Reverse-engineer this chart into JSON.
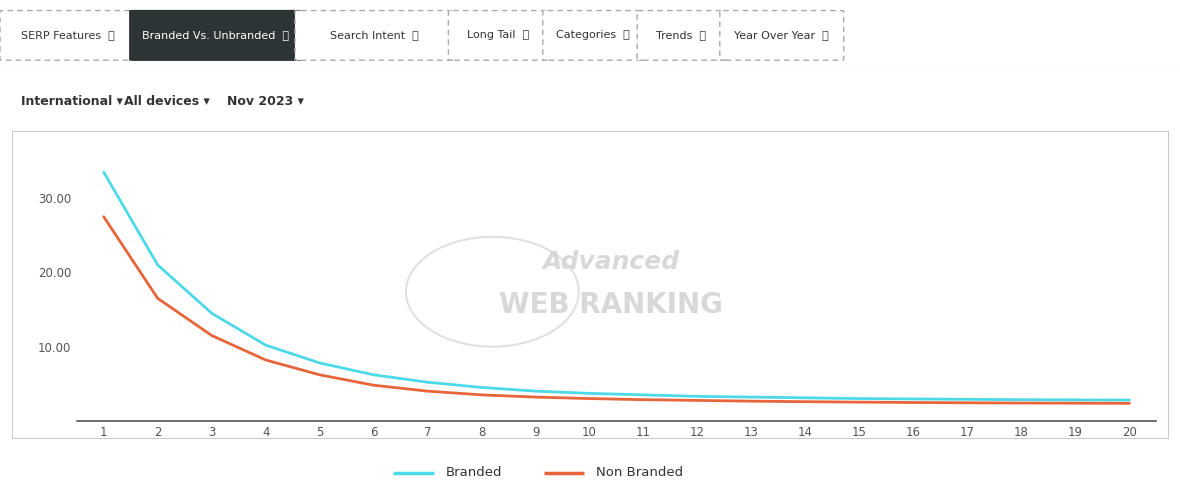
{
  "branded": [
    33.5,
    21.0,
    14.5,
    10.2,
    7.8,
    6.2,
    5.2,
    4.5,
    4.0,
    3.7,
    3.5,
    3.3,
    3.2,
    3.1,
    3.0,
    2.95,
    2.9,
    2.85,
    2.82,
    2.8
  ],
  "non_branded": [
    27.5,
    16.5,
    11.5,
    8.2,
    6.2,
    4.8,
    4.0,
    3.5,
    3.2,
    3.0,
    2.85,
    2.75,
    2.65,
    2.58,
    2.52,
    2.47,
    2.43,
    2.4,
    2.38,
    2.36
  ],
  "x": [
    1,
    2,
    3,
    4,
    5,
    6,
    7,
    8,
    9,
    10,
    11,
    12,
    13,
    14,
    15,
    16,
    17,
    18,
    19,
    20
  ],
  "branded_color": "#4dd9e8",
  "non_branded_color": "#e8643a",
  "yticks": [
    10.0,
    20.0,
    30.0
  ],
  "xticks": [
    1,
    2,
    3,
    4,
    5,
    6,
    7,
    8,
    9,
    10,
    11,
    12,
    13,
    14,
    15,
    16,
    17,
    18,
    19,
    20
  ],
  "ylim": [
    0,
    37
  ],
  "xlim": [
    0.5,
    20.5
  ],
  "chart_bg": "#ffffff",
  "legend_bg": "#e8ebef",
  "legend_label_branded": "Branded",
  "legend_label_non_branded": "Non Branded",
  "line_width": 2.0,
  "nav_buttons": [
    "SERP Features  ⓘ",
    "Branded Vs. Unbranded  ⓘ",
    "Search Intent  ⓘ",
    "Long Tail  ⓘ",
    "Categories  ⓘ",
    "Trends  ⓘ",
    "Year Over Year  ⓘ"
  ],
  "nav_active_idx": 1,
  "filter_items": [
    "International ▾",
    "All devices ▾",
    "Nov 2023 ▾"
  ],
  "nav_bg": "#ffffff",
  "fig_bg": "#ffffff",
  "outer_border_color": "#cccccc",
  "watermark_color": "#d4d4d4"
}
